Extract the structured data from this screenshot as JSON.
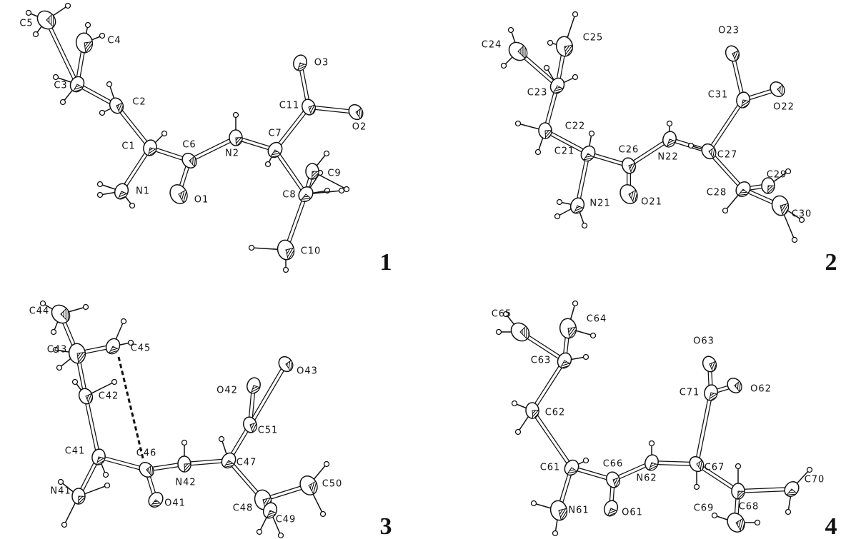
{
  "panels": [
    {
      "number": "1",
      "atoms": [
        "C5",
        "C4",
        "C3",
        "C2",
        "C1",
        "C6",
        "N2",
        "C7",
        "C11",
        "O3",
        "O2",
        "C9",
        "C8",
        "C10",
        "N1",
        "O1"
      ]
    },
    {
      "number": "2",
      "atoms": [
        "C24",
        "C25",
        "C23",
        "O23",
        "C31",
        "O22",
        "C22",
        "C21",
        "C26",
        "N22",
        "C27",
        "C29",
        "C28",
        "C30",
        "N21",
        "O21"
      ]
    },
    {
      "number": "3",
      "atoms": [
        "C44",
        "C43",
        "C45",
        "C42",
        "C41",
        "C46",
        "N42",
        "C47",
        "C51",
        "O42",
        "O43",
        "N41",
        "O41",
        "C48",
        "C49",
        "C50"
      ]
    },
    {
      "number": "4",
      "atoms": [
        "C65",
        "C64",
        "C63",
        "O63",
        "C71",
        "O62",
        "C62",
        "C61",
        "C66",
        "N62",
        "C67",
        "C68",
        "C70",
        "N61",
        "O61",
        "C69"
      ]
    }
  ]
}
